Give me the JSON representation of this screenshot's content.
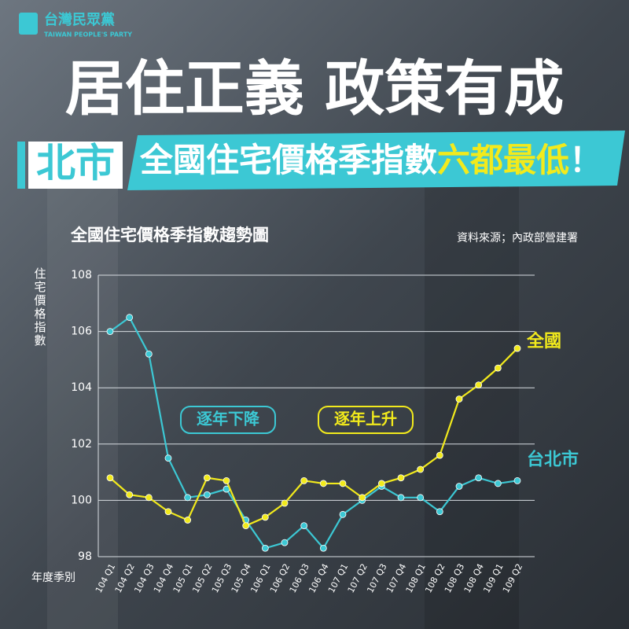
{
  "header": {
    "logo_name": "台灣民眾黨",
    "logo_en": "TAIWAN PEOPLE'S PARTY",
    "headline": "居住正義 政策有成",
    "tag": "北市",
    "banner": "全國住宅價格季指數",
    "banner_highlight": "六都最低",
    "banner_end": "！"
  },
  "chart_data": {
    "type": "line",
    "title": "全國住宅價格季指數趨勢圖",
    "source": "資料來源；內政部營建署",
    "ylabel": "住宅價格指數",
    "xlabel": "年度季別",
    "categories": [
      "104 Q1",
      "104 Q2",
      "104 Q3",
      "104 Q4",
      "105 Q1",
      "105 Q2",
      "105 Q3",
      "105 Q4",
      "106 Q1",
      "106 Q2",
      "106 Q3",
      "106 Q4",
      "107 Q1",
      "107 Q2",
      "107 Q3",
      "107 Q4",
      "108 Q1",
      "108 Q2",
      "108 Q3",
      "108 Q4",
      "109 Q1",
      "109 Q2"
    ],
    "series": [
      {
        "name": "台北市",
        "color": "#3cc8d4",
        "values": [
          106.0,
          106.5,
          105.2,
          101.5,
          100.1,
          100.2,
          100.4,
          99.3,
          98.3,
          98.5,
          99.1,
          98.3,
          99.5,
          100.0,
          100.5,
          100.1,
          100.1,
          99.6,
          100.5,
          100.8,
          100.6,
          100.7
        ]
      },
      {
        "name": "全國",
        "color": "#f2ea1c",
        "values": [
          100.8,
          100.2,
          100.1,
          99.6,
          99.3,
          100.8,
          100.7,
          99.1,
          99.4,
          99.9,
          100.7,
          100.6,
          100.6,
          100.1,
          100.6,
          100.8,
          101.1,
          101.6,
          103.6,
          104.1,
          104.7,
          105.4
        ]
      }
    ],
    "ylim": [
      98,
      108
    ],
    "yticks": [
      98,
      100,
      102,
      104,
      106,
      108
    ],
    "grid": true,
    "annotations": [
      {
        "text": "逐年下降",
        "color": "#3cc8d4"
      },
      {
        "text": "逐年上升",
        "color": "#f2ea1c"
      }
    ]
  }
}
